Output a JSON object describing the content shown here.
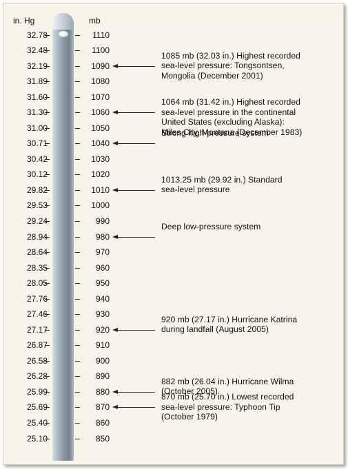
{
  "headers": {
    "inhg": "in. Hg",
    "mb": "mb"
  },
  "scale": [
    {
      "inhg": "32.78",
      "mb": "1110"
    },
    {
      "inhg": "32.48",
      "mb": "1100"
    },
    {
      "inhg": "32.19",
      "mb": "1090"
    },
    {
      "inhg": "31.89",
      "mb": "1080"
    },
    {
      "inhg": "31.60",
      "mb": "1070"
    },
    {
      "inhg": "31.30",
      "mb": "1060"
    },
    {
      "inhg": "31.00",
      "mb": "1050"
    },
    {
      "inhg": "30.71",
      "mb": "1040"
    },
    {
      "inhg": "30.42",
      "mb": "1030"
    },
    {
      "inhg": "30.12",
      "mb": "1020"
    },
    {
      "inhg": "29.82",
      "mb": "1010"
    },
    {
      "inhg": "29.53",
      "mb": "1000"
    },
    {
      "inhg": "29.24",
      "mb": "990"
    },
    {
      "inhg": "28.94",
      "mb": "980"
    },
    {
      "inhg": "28.64",
      "mb": "970"
    },
    {
      "inhg": "28.35",
      "mb": "960"
    },
    {
      "inhg": "28.05",
      "mb": "950"
    },
    {
      "inhg": "27.76",
      "mb": "940"
    },
    {
      "inhg": "27.46",
      "mb": "930"
    },
    {
      "inhg": "27.17",
      "mb": "920"
    },
    {
      "inhg": "26.87",
      "mb": "910"
    },
    {
      "inhg": "26.58",
      "mb": "900"
    },
    {
      "inhg": "26.28",
      "mb": "890"
    },
    {
      "inhg": "25.99",
      "mb": "880"
    },
    {
      "inhg": "25.69",
      "mb": "870"
    },
    {
      "inhg": "25.40",
      "mb": "860"
    },
    {
      "inhg": "25.10",
      "mb": "850"
    }
  ],
  "annotations": [
    {
      "mb": 1090,
      "lines": [
        "1085 mb (32.03 in.) Highest recorded",
        "sea-level pressure: Tongsontsen,",
        "Mongolia (December 2001)"
      ]
    },
    {
      "mb": 1060,
      "lines": [
        "1064 mb (31.42 in.) Highest recorded",
        "sea-level pressure in the continental",
        "United States (excluding Alaska):",
        "Miles City, Montana (December 1983)"
      ]
    },
    {
      "mb": 1040,
      "lines": [
        "Strong high-pressure system"
      ]
    },
    {
      "mb": 1010,
      "lines": [
        "1013.25 mb (29.92 in.) Standard",
        "sea-level pressure"
      ]
    },
    {
      "mb": 980,
      "lines": [
        "Deep low-pressure system"
      ]
    },
    {
      "mb": 920,
      "lines": [
        "920 mb (27.17 in.) Hurricane Katrina",
        "during landfall (August 2005)"
      ]
    },
    {
      "mb": 880,
      "lines": [
        "882 mb (26.04 in.) Hurricane Wilma",
        "(October 2005)"
      ]
    },
    {
      "mb": 870,
      "lines": [
        "870 mb (25.70 in.) Lowest recorded",
        "sea-level pressure: Typhoon Tip",
        "(October 1979)"
      ]
    }
  ],
  "colors": {
    "tube": "#8d9aa5",
    "background": "#f7f4ea",
    "text": "#111111"
  }
}
